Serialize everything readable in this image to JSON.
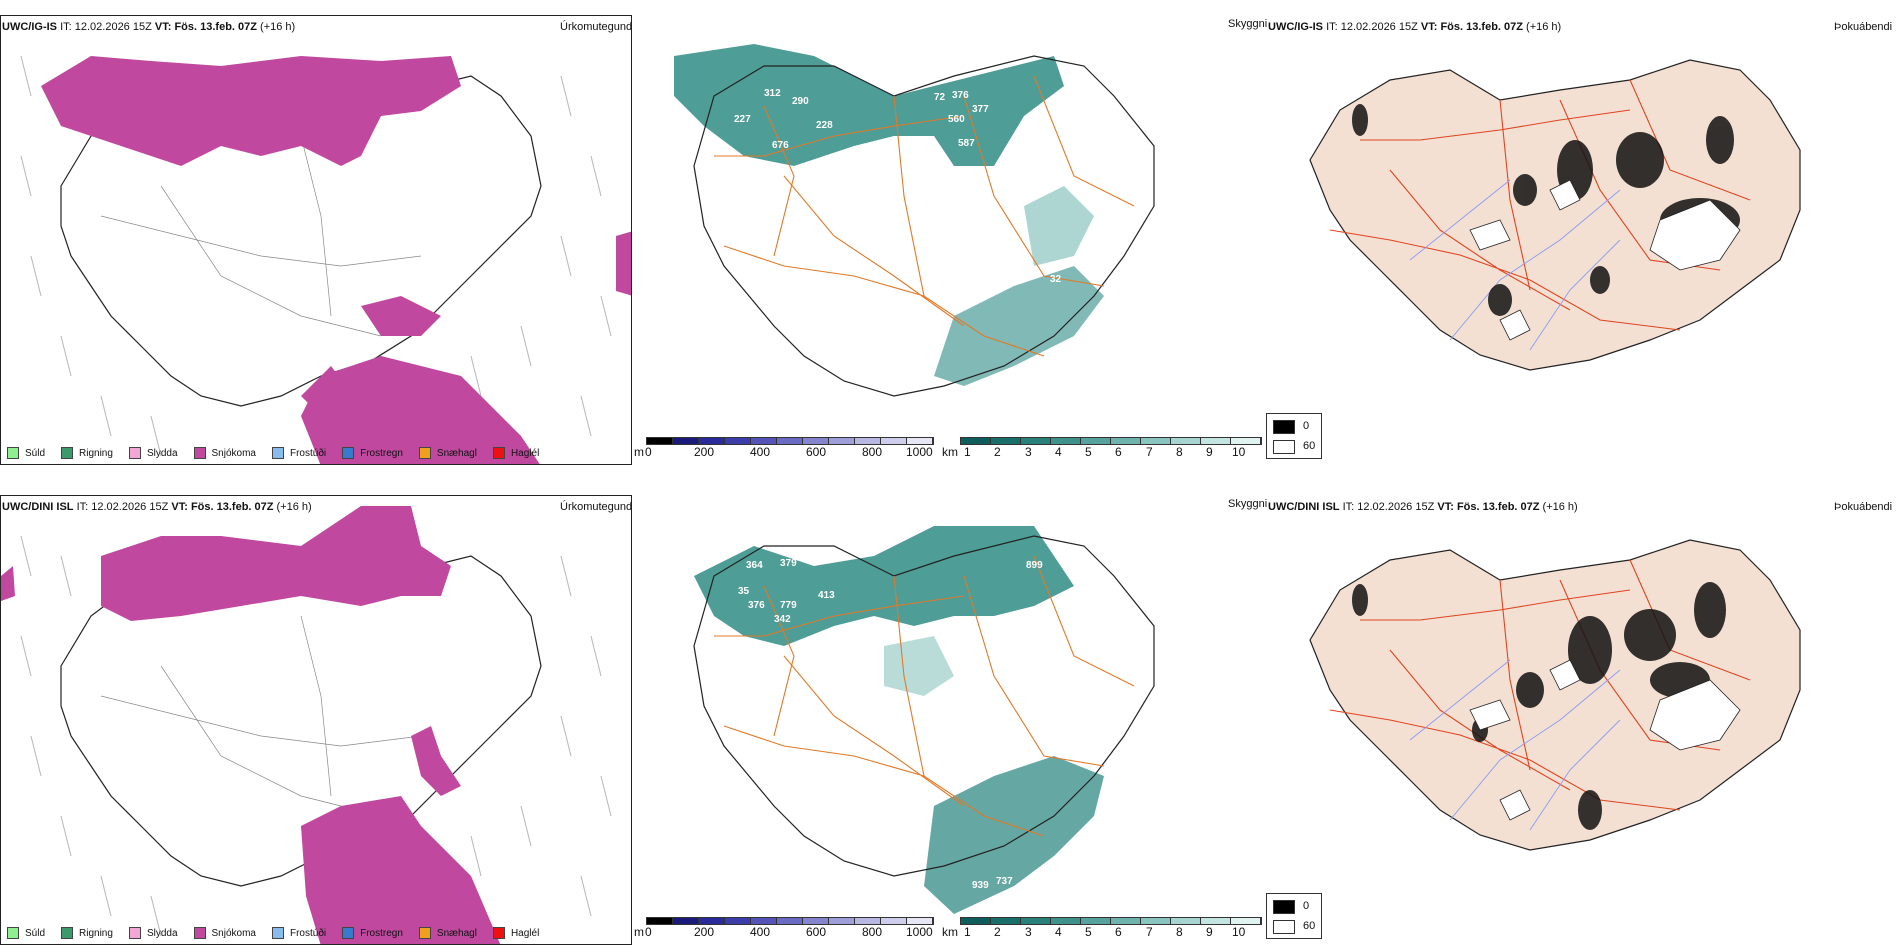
{
  "rows": [
    {
      "model_title": "UWC/IG-IS",
      "it_label": "IT:",
      "it_value": "12.02.2026 15Z",
      "vt_label": "VT:",
      "vt_value": "Fös. 13.feb. 07Z",
      "lead": "(+16 h)",
      "precip_title": "Úrkomutegund",
      "visibility_title": "Skyggni",
      "fog_title": "Þokuábendi",
      "peak_labels": [
        "312",
        "290",
        "227",
        "228",
        "676",
        "72",
        "376",
        "560",
        "377",
        "587",
        "32"
      ]
    },
    {
      "model_title": "UWC/DINI ISL",
      "it_label": "IT:",
      "it_value": "12.02.2026 15Z",
      "vt_label": "VT:",
      "vt_value": "Fös. 13.feb. 07Z",
      "lead": "(+16 h)",
      "precip_title": "Úrkomutegund",
      "visibility_title": "Skyggni",
      "fog_title": "Þokuábendi",
      "peak_labels": [
        "364",
        "379",
        "35",
        "376",
        "779",
        "413",
        "342",
        "899",
        "939",
        "737"
      ]
    }
  ],
  "precip_legend": [
    {
      "label": "Súld",
      "color": "#90ee90"
    },
    {
      "label": "Rigning",
      "color": "#3a9a6a"
    },
    {
      "label": "Slydda",
      "color": "#f4a6d6"
    },
    {
      "label": "Snjókoma",
      "color": "#c0489e"
    },
    {
      "label": "Frostúði",
      "color": "#88bbee"
    },
    {
      "label": "Frostregn",
      "color": "#3a7acc"
    },
    {
      "label": "Snæhagl",
      "color": "#f0a020"
    },
    {
      "label": "Haglél",
      "color": "#ee1111"
    }
  ],
  "elevation_bar": {
    "unit": "m",
    "ticks": [
      "0",
      "200",
      "400",
      "600",
      "800",
      "1000"
    ],
    "colors": [
      "#000000",
      "#1a1a7a",
      "#2a2a9a",
      "#3c3cab",
      "#5454b8",
      "#6b6bc4",
      "#8585cf",
      "#9e9ed8",
      "#b7b7e2",
      "#ceceec",
      "#e6e6f5"
    ]
  },
  "visibility_bar": {
    "unit": "km",
    "ticks": [
      "1",
      "2",
      "3",
      "4",
      "5",
      "6",
      "7",
      "8",
      "9",
      "10"
    ],
    "colors": [
      "#0d5e5a",
      "#1a6f6a",
      "#2a807a",
      "#3f918b",
      "#56a29c",
      "#6fb3ad",
      "#8ac4bf",
      "#a6d5d1",
      "#c2e5e2",
      "#e0f3f1"
    ]
  },
  "fog_scale": {
    "max_label": "0",
    "min_label": "60"
  },
  "colors": {
    "snow": "#c0489e",
    "fog_teal": "#2f8c84",
    "land_fog": "#f3e0d3",
    "roads": "#e07a2a",
    "roads_red": "#e0441f",
    "rivers": "#8a9cf0"
  }
}
